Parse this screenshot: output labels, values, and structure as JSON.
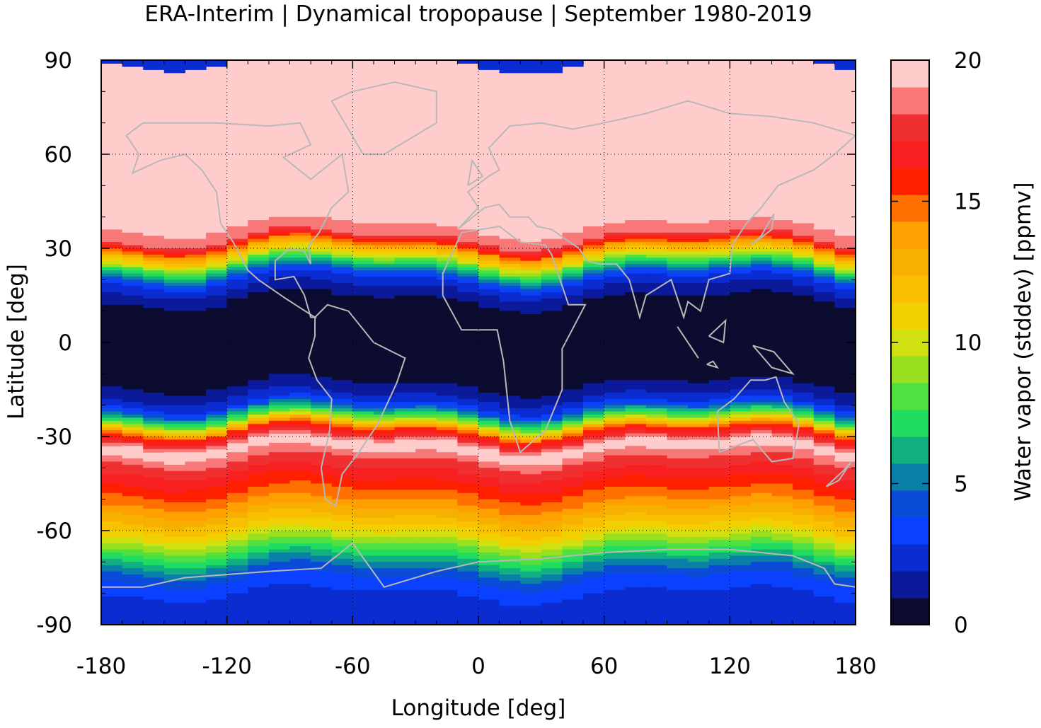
{
  "title": "ERA-Interim | Dynamical tropopause | September 1980-2019",
  "map": {
    "xlabel": "Longitude [deg]",
    "ylabel": "Latitude [deg]",
    "xlim": [
      -180,
      180
    ],
    "ylim": [
      -90,
      90
    ],
    "xticks": [
      -180,
      -120,
      -60,
      0,
      60,
      120,
      180
    ],
    "yticks": [
      90,
      60,
      30,
      0,
      -30,
      -60,
      -90
    ],
    "grid": true,
    "coastline_color": "#b8b8b8"
  },
  "colorbar": {
    "label": "Water vapor (stddev) [ppmv]",
    "range": [
      0,
      20
    ],
    "ticks": [
      0,
      5,
      10,
      15,
      20
    ],
    "colors": [
      "#0c0c30",
      "#0a1a9a",
      "#0a2cd0",
      "#0a40ff",
      "#0a4cd8",
      "#0a80a8",
      "#10b080",
      "#20dc60",
      "#50e040",
      "#98e020",
      "#d0e010",
      "#f0d000",
      "#f8c000",
      "#f8b000",
      "#ffa000",
      "#ff7000",
      "#ff2000",
      "#f82020",
      "#f03030",
      "#f87878",
      "#ffcccc"
    ]
  },
  "chart_data": {
    "type": "heatmap",
    "title": "ERA-Interim | Dynamical tropopause | September 1980-2019",
    "xlabel": "Longitude [deg]",
    "ylabel": "Latitude [deg]",
    "xlim": [
      -180,
      180
    ],
    "ylim": [
      -90,
      90
    ],
    "colorbar_label": "Water vapor (stddev) [ppmv]",
    "colorbar_range": [
      0,
      20
    ],
    "zonal_profile": [
      {
        "lat": 90,
        "value": 20
      },
      {
        "lat": 60,
        "value": 20
      },
      {
        "lat": 40,
        "value": 20
      },
      {
        "lat": 33,
        "value": 18
      },
      {
        "lat": 30,
        "value": 14
      },
      {
        "lat": 25,
        "value": 8
      },
      {
        "lat": 20,
        "value": 3
      },
      {
        "lat": 15,
        "value": 1
      },
      {
        "lat": 0,
        "value": 0.5
      },
      {
        "lat": -15,
        "value": 1
      },
      {
        "lat": -20,
        "value": 3
      },
      {
        "lat": -25,
        "value": 9
      },
      {
        "lat": -28,
        "value": 15
      },
      {
        "lat": -33,
        "value": 20
      },
      {
        "lat": -38,
        "value": 18
      },
      {
        "lat": -45,
        "value": 16
      },
      {
        "lat": -52,
        "value": 14
      },
      {
        "lat": -60,
        "value": 11
      },
      {
        "lat": -66,
        "value": 8
      },
      {
        "lat": -72,
        "value": 5
      },
      {
        "lat": -78,
        "value": 3
      },
      {
        "lat": -85,
        "value": 2.5
      },
      {
        "lat": -90,
        "value": 2.5
      }
    ]
  }
}
